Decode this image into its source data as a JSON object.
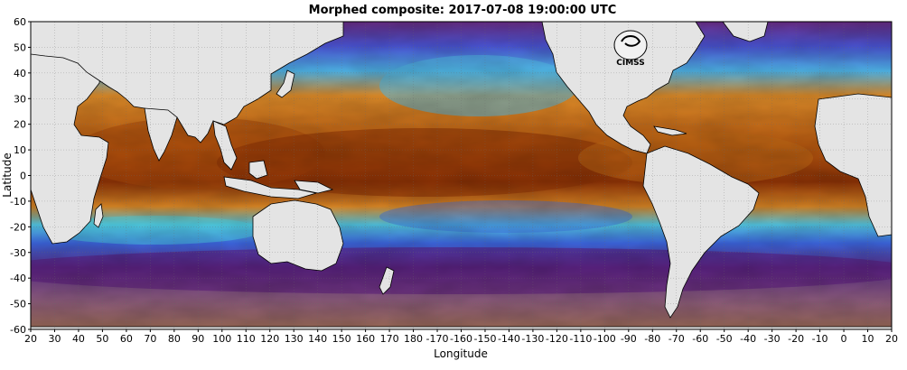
{
  "title": "Morphed composite: 2017-07-08 19:00:00 UTC",
  "xlabel": "Longitude",
  "ylabel": "Latitude",
  "x_ticks": [
    "20",
    "30",
    "40",
    "50",
    "60",
    "70",
    "80",
    "90",
    "100",
    "110",
    "120",
    "130",
    "140",
    "150",
    "160",
    "170",
    "180",
    "-170",
    "-160",
    "-150",
    "-140",
    "-130",
    "-120",
    "-110",
    "-100",
    "-90",
    "-80",
    "-70",
    "-60",
    "-50",
    "-40",
    "-30",
    "-20",
    "-10",
    "0",
    "10",
    "20"
  ],
  "y_ticks": [
    "60",
    "50",
    "40",
    "30",
    "20",
    "10",
    "0",
    "-10",
    "-20",
    "-30",
    "-40",
    "-50",
    "-60"
  ],
  "logo_text": "CIMSS",
  "colors": {
    "land": "#e4e4e4",
    "dry": "#5a1a7a",
    "low": "#3f5fe0",
    "mid": "#39d6e0",
    "moderate": "#e08a1a",
    "high": "#8a2c06",
    "ocean_south": "#8e6070"
  }
}
